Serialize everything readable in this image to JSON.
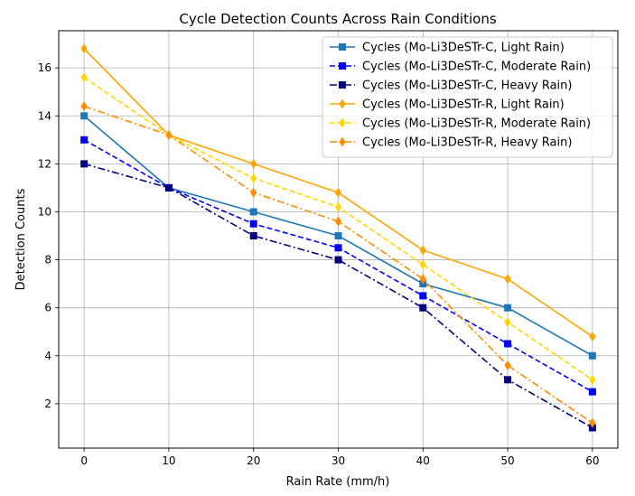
{
  "chart_data": {
    "type": "line",
    "title": "Cycle Detection Counts Across Rain Conditions",
    "xlabel": "Rain Rate (mm/h)",
    "ylabel": "Detection Counts",
    "xlim": [
      -3,
      63
    ],
    "ylim": [
      0.15,
      17.55
    ],
    "xticks": [
      0,
      10,
      20,
      30,
      40,
      50,
      60
    ],
    "yticks": [
      2,
      4,
      6,
      8,
      10,
      12,
      14,
      16
    ],
    "grid": true,
    "legend_position": "top-right",
    "x": [
      0,
      10,
      20,
      30,
      40,
      50,
      60
    ],
    "series": [
      {
        "name": "Cycles (Mo-Li3DeSTr-C, Light Rain)",
        "values": [
          14,
          11,
          10,
          9,
          7,
          6,
          4
        ],
        "color": "#1f77b4",
        "dash": "solid",
        "marker": "square"
      },
      {
        "name": "Cycles (Mo-Li3DeSTr-C, Moderate Rain)",
        "values": [
          13,
          11,
          9.5,
          8.5,
          6.5,
          4.5,
          2.5
        ],
        "color": "#0000ff",
        "dash": "dashed",
        "marker": "square"
      },
      {
        "name": "Cycles (Mo-Li3DeSTr-C, Heavy Rain)",
        "values": [
          12,
          11,
          9,
          8,
          6,
          3,
          1
        ],
        "color": "#000080",
        "dash": "dashdot",
        "marker": "square"
      },
      {
        "name": "Cycles (Mo-Li3DeSTr-R, Light Rain)",
        "values": [
          16.8,
          13.2,
          12,
          10.8,
          8.4,
          7.2,
          4.8
        ],
        "color": "#ffa500",
        "dash": "solid",
        "marker": "diamond"
      },
      {
        "name": "Cycles (Mo-Li3DeSTr-R, Moderate Rain)",
        "values": [
          15.6,
          13.2,
          11.4,
          10.2,
          7.8,
          5.4,
          3
        ],
        "color": "#ffd700",
        "dash": "dashed",
        "marker": "diamond"
      },
      {
        "name": "Cycles (Mo-Li3DeSTr-R, Heavy Rain)",
        "values": [
          14.4,
          13.2,
          10.8,
          9.6,
          7.2,
          3.6,
          1.2
        ],
        "color": "#ff8c00",
        "dash": "dashdot",
        "marker": "diamond"
      }
    ]
  }
}
